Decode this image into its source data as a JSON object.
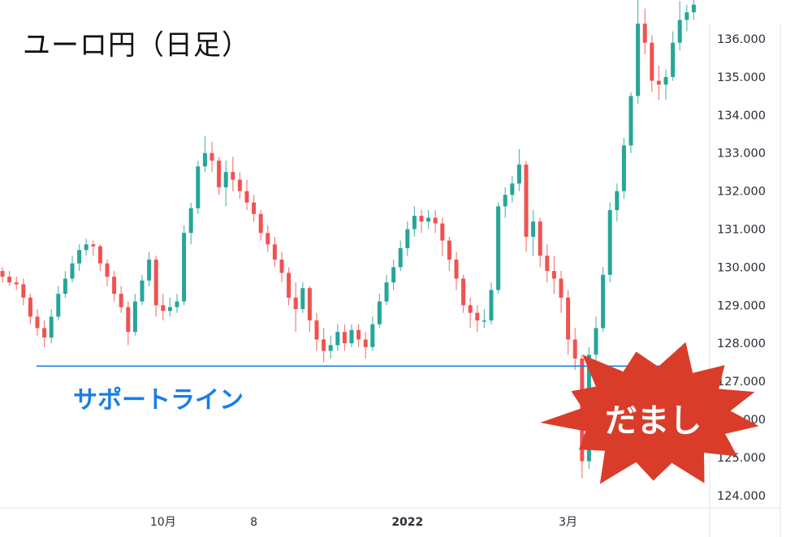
{
  "chart_data": {
    "type": "candlestick",
    "title": "ユーロ円（日足）",
    "ylim": [
      124.0,
      137.0
    ],
    "y_ticks": [
      "124.000",
      "125.000",
      "126.000",
      "127.000",
      "128.000",
      "129.000",
      "130.000",
      "131.000",
      "132.000",
      "133.000",
      "134.000",
      "135.000",
      "136.000"
    ],
    "x_ticks": [
      {
        "label": "10月",
        "index": 23,
        "bold": false
      },
      {
        "label": "8",
        "index": 36,
        "bold": false
      },
      {
        "label": "2022",
        "index": 58,
        "bold": true
      },
      {
        "label": "3月",
        "index": 81,
        "bold": false
      }
    ],
    "colors": {
      "up": "#26a69a",
      "down": "#ef5350",
      "support": "#1a7ee8",
      "burst": "#d93d2a"
    },
    "support_line": {
      "price": 127.4,
      "label": "サポートライン"
    },
    "annotation": {
      "text": "だまし",
      "shape": "burst"
    },
    "candles_ohlc": [
      [
        129.9,
        130.0,
        129.6,
        129.75
      ],
      [
        129.75,
        129.9,
        129.5,
        129.6
      ],
      [
        129.6,
        129.75,
        129.4,
        129.55
      ],
      [
        129.55,
        129.7,
        129.0,
        129.2
      ],
      [
        129.2,
        129.3,
        128.5,
        128.7
      ],
      [
        128.7,
        128.9,
        128.2,
        128.4
      ],
      [
        128.4,
        128.6,
        127.9,
        128.15
      ],
      [
        128.15,
        128.9,
        128.0,
        128.7
      ],
      [
        128.7,
        129.5,
        128.6,
        129.3
      ],
      [
        129.3,
        129.9,
        129.2,
        129.7
      ],
      [
        129.7,
        130.3,
        129.6,
        130.1
      ],
      [
        130.1,
        130.6,
        129.9,
        130.45
      ],
      [
        130.45,
        130.75,
        130.3,
        130.6
      ],
      [
        130.6,
        130.7,
        130.3,
        130.55
      ],
      [
        130.55,
        130.6,
        129.9,
        130.1
      ],
      [
        130.1,
        130.2,
        129.5,
        129.75
      ],
      [
        129.75,
        129.9,
        129.1,
        129.3
      ],
      [
        129.3,
        129.5,
        128.8,
        128.95
      ],
      [
        128.95,
        129.1,
        127.95,
        128.3
      ],
      [
        128.3,
        129.3,
        128.2,
        129.1
      ],
      [
        129.1,
        129.8,
        129.0,
        129.65
      ],
      [
        129.65,
        130.4,
        129.5,
        130.2
      ],
      [
        130.2,
        130.3,
        128.7,
        129.0
      ],
      [
        129.0,
        129.3,
        128.6,
        128.85
      ],
      [
        128.85,
        129.2,
        128.7,
        128.95
      ],
      [
        128.95,
        129.3,
        128.8,
        129.1
      ],
      [
        129.1,
        131.1,
        129.0,
        130.9
      ],
      [
        130.9,
        131.7,
        130.6,
        131.55
      ],
      [
        131.55,
        132.8,
        131.4,
        132.65
      ],
      [
        132.65,
        133.45,
        132.5,
        133.0
      ],
      [
        133.0,
        133.3,
        132.5,
        132.8
      ],
      [
        132.8,
        132.9,
        131.9,
        132.1
      ],
      [
        132.1,
        132.8,
        131.6,
        132.5
      ],
      [
        132.5,
        132.9,
        132.0,
        132.3
      ],
      [
        132.3,
        132.5,
        131.8,
        132.0
      ],
      [
        132.0,
        132.3,
        131.5,
        131.7
      ],
      [
        131.7,
        131.9,
        131.2,
        131.4
      ],
      [
        131.4,
        131.5,
        130.7,
        130.9
      ],
      [
        130.9,
        131.1,
        130.4,
        130.6
      ],
      [
        130.6,
        130.8,
        130.0,
        130.2
      ],
      [
        130.2,
        130.4,
        129.6,
        129.85
      ],
      [
        129.85,
        130.0,
        129.0,
        129.2
      ],
      [
        129.2,
        129.6,
        128.3,
        128.9
      ],
      [
        128.9,
        129.6,
        128.8,
        129.45
      ],
      [
        129.45,
        129.5,
        128.3,
        128.6
      ],
      [
        128.6,
        128.8,
        127.8,
        128.1
      ],
      [
        128.1,
        128.4,
        127.5,
        127.8
      ],
      [
        127.8,
        128.2,
        127.6,
        127.95
      ],
      [
        127.95,
        128.5,
        127.8,
        128.3
      ],
      [
        128.3,
        128.5,
        127.8,
        128.0
      ],
      [
        128.0,
        128.5,
        127.9,
        128.35
      ],
      [
        128.35,
        128.5,
        127.9,
        128.1
      ],
      [
        128.1,
        128.3,
        127.6,
        127.9
      ],
      [
        127.9,
        128.7,
        127.8,
        128.5
      ],
      [
        128.5,
        129.3,
        128.4,
        129.1
      ],
      [
        129.1,
        129.8,
        129.0,
        129.6
      ],
      [
        129.6,
        130.2,
        129.4,
        130.0
      ],
      [
        130.0,
        130.7,
        129.9,
        130.5
      ],
      [
        130.5,
        131.2,
        130.3,
        131.0
      ],
      [
        131.0,
        131.6,
        130.8,
        131.35
      ],
      [
        131.35,
        131.5,
        130.9,
        131.2
      ],
      [
        131.2,
        131.5,
        131.0,
        131.3
      ],
      [
        131.3,
        131.5,
        130.9,
        131.15
      ],
      [
        131.15,
        131.3,
        130.3,
        130.7
      ],
      [
        130.7,
        130.8,
        129.9,
        130.2
      ],
      [
        130.2,
        130.4,
        129.4,
        129.7
      ],
      [
        129.7,
        129.8,
        128.8,
        129.0
      ],
      [
        129.0,
        129.2,
        128.4,
        128.8
      ],
      [
        128.8,
        129.0,
        128.3,
        128.6
      ],
      [
        128.6,
        128.9,
        128.4,
        128.6
      ],
      [
        128.6,
        129.6,
        128.5,
        129.4
      ],
      [
        129.4,
        131.7,
        129.3,
        131.6
      ],
      [
        131.6,
        132.1,
        131.3,
        131.9
      ],
      [
        131.9,
        132.4,
        131.7,
        132.2
      ],
      [
        132.2,
        133.1,
        132.0,
        132.7
      ],
      [
        132.7,
        132.8,
        130.4,
        130.8
      ],
      [
        130.8,
        131.5,
        130.3,
        131.2
      ],
      [
        131.2,
        131.3,
        130.0,
        130.3
      ],
      [
        130.3,
        130.6,
        129.6,
        129.9
      ],
      [
        129.9,
        130.3,
        129.3,
        129.7
      ],
      [
        129.7,
        129.9,
        128.8,
        129.2
      ],
      [
        129.2,
        129.4,
        127.7,
        128.1
      ],
      [
        128.1,
        128.4,
        127.3,
        127.6
      ],
      [
        127.6,
        127.7,
        124.45,
        124.9
      ],
      [
        124.9,
        127.9,
        124.7,
        127.7
      ],
      [
        127.7,
        128.7,
        127.5,
        128.4
      ],
      [
        128.4,
        130.0,
        128.3,
        129.8
      ],
      [
        129.8,
        131.7,
        129.6,
        131.5
      ],
      [
        131.5,
        132.2,
        131.2,
        132.0
      ],
      [
        132.0,
        133.4,
        131.8,
        133.2
      ],
      [
        133.2,
        134.6,
        133.0,
        134.5
      ],
      [
        134.5,
        137.2,
        134.3,
        136.4
      ],
      [
        136.4,
        136.8,
        135.6,
        135.9
      ],
      [
        135.9,
        136.1,
        134.6,
        134.9
      ],
      [
        134.9,
        135.3,
        134.4,
        134.8
      ],
      [
        134.8,
        135.2,
        134.4,
        135.0
      ],
      [
        135.0,
        136.2,
        134.9,
        135.9
      ],
      [
        135.9,
        137.0,
        135.7,
        136.5
      ],
      [
        136.5,
        136.9,
        136.2,
        136.7
      ],
      [
        136.7,
        137.1,
        136.5,
        136.9
      ]
    ]
  }
}
